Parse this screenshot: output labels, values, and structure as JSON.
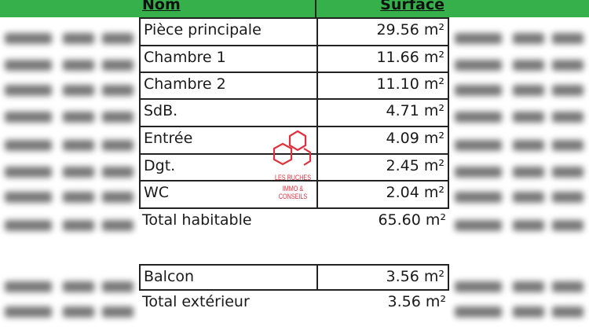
{
  "header": {
    "name_label": "Nom",
    "surface_label": "Surface"
  },
  "rooms": [
    {
      "name": "Pièce principale",
      "surface": "29.56 m²"
    },
    {
      "name": "Chambre 1",
      "surface": "11.66 m²"
    },
    {
      "name": "Chambre 2",
      "surface": "11.10 m²"
    },
    {
      "name": "SdB.",
      "surface": "4.71 m²"
    },
    {
      "name": "Entrée",
      "surface": "4.09 m²"
    },
    {
      "name": "Dgt.",
      "surface": "2.45 m²"
    },
    {
      "name": "WC",
      "surface": "2.04 m²"
    }
  ],
  "total_habitable": {
    "name": "Total habitable",
    "surface": "65.60 m²"
  },
  "exterior": [
    {
      "name": "Balcon",
      "surface": "3.56 m²"
    }
  ],
  "total_exterieur": {
    "name": "Total extérieur",
    "surface": "3.56 m²"
  },
  "watermark": {
    "line1": "LES RUCHES",
    "line2": "IMMO & CONSEILS",
    "color": "#e0303c"
  },
  "colors": {
    "header_green": "#35b04a"
  }
}
